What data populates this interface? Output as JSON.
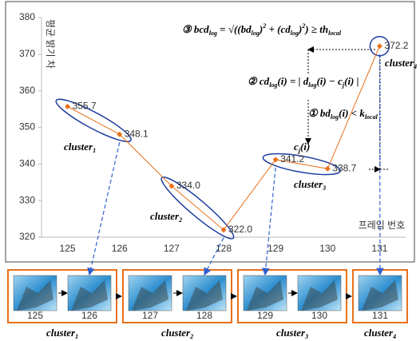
{
  "chart_data": {
    "type": "line",
    "y_label": "평균 밝기 차",
    "x_label": "프레임 번호",
    "categories": [
      125,
      126,
      127,
      128,
      129,
      130,
      131
    ],
    "values": [
      355.7,
      348.1,
      334.0,
      322.0,
      341.2,
      338.7,
      372.2
    ],
    "value_labels": [
      "355.7",
      "348.1",
      "334.0",
      "322.0",
      "341.2",
      "338.7",
      "372.2"
    ],
    "color": "#e8701a",
    "ylim": [
      320,
      380
    ],
    "yticks": [
      320,
      330,
      340,
      350,
      360,
      370,
      380
    ],
    "annotations": [
      [
        "③ ",
        "bcd",
        {
          "sub": "log"
        },
        " = √((bd",
        {
          "sub": "log"
        },
        ")",
        {
          "sup": "2"
        },
        " + (cd",
        {
          "sub": "log"
        },
        ")",
        {
          "sup": "2"
        },
        ") ≥ th",
        {
          "sub": "local"
        }
      ],
      [
        "② ",
        "cd",
        {
          "sub": "log"
        },
        "(i) = | d",
        {
          "sub": "log"
        },
        "(i) − c",
        {
          "sub": "j"
        },
        "(i) |"
      ],
      [
        "① ",
        "bd",
        {
          "sub": "log"
        },
        "(i) < k",
        {
          "sub": "local"
        }
      ],
      [
        "c",
        {
          "sub": "j"
        },
        "(i)"
      ]
    ],
    "clusters": [
      [
        "cluster",
        {
          "sub": "1"
        }
      ],
      [
        "cluster",
        {
          "sub": "2"
        }
      ],
      [
        "cluster",
        {
          "sub": "3"
        }
      ],
      [
        "cluster",
        {
          "sub": "4"
        }
      ]
    ]
  }
}
